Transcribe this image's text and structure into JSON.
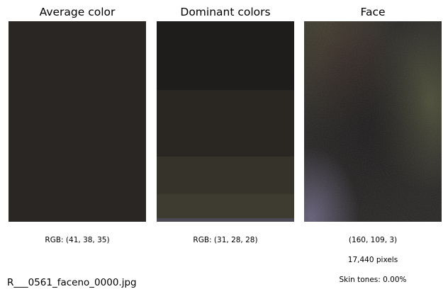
{
  "panels": {
    "average": {
      "title": "Average color",
      "rgb_label": "RGB: (41, 38, 35)",
      "color": "#292623"
    },
    "dominant": {
      "title": "Dominant colors",
      "rgb_label": "RGB: (31, 28, 28)",
      "bands": [
        {
          "color": "#1f1c1c",
          "fraction": 0.343
        },
        {
          "color": "#2a2621",
          "fraction": 0.332
        },
        {
          "color": "#35332a",
          "fraction": 0.187
        },
        {
          "color": "#3e3c30",
          "fraction": 0.12
        },
        {
          "color": "#4a4a55",
          "fraction": 0.018
        }
      ]
    },
    "face": {
      "title": "Face",
      "rgb_label": "(160, 109, 3)",
      "pixel_count": "17,440 pixels",
      "skin_tones": "Skin tones: 0.00%"
    }
  },
  "filename": "R___0561_faceno_0000.jpg"
}
